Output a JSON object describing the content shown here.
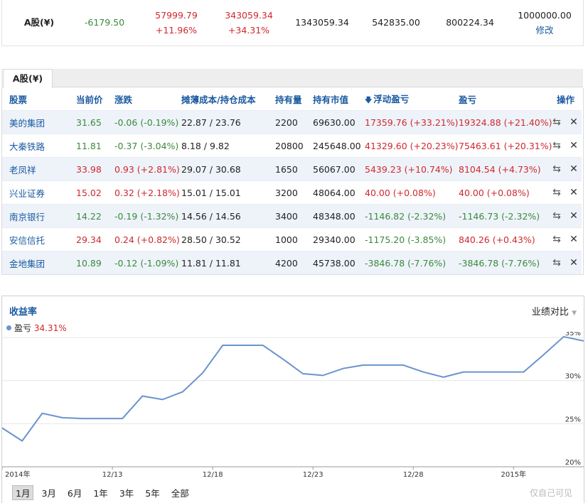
{
  "summary": {
    "market_label": "A股(¥)",
    "today_pnl": "-6179.50",
    "holding_pnl": "57999.79",
    "holding_pnl_pct": "+11.96%",
    "total_pnl": "343059.34",
    "total_pnl_pct": "+34.31%",
    "total_assets": "1343059.34",
    "market_value": "542835.00",
    "cash": "800224.34",
    "principal": "1000000.00",
    "edit_label": "修改"
  },
  "tab": {
    "label": "A股(¥)"
  },
  "table": {
    "headers": [
      "股票",
      "当前价",
      "涨跌",
      "摊薄成本/持仓成本",
      "持有量",
      "持有市值",
      "浮动盈亏",
      "盈亏",
      "操作"
    ],
    "sort_icon": "sort-down-icon",
    "rows": [
      {
        "name": "美的集团",
        "price": "31.65",
        "change": "-0.06 (-0.19%)",
        "cost": "22.87 / 23.76",
        "qty": "2200",
        "value": "69630.00",
        "float_pnl": "17359.76 (+33.21%)",
        "pnl": "19324.88 (+21.40%)",
        "dir": "down",
        "fdir": "up",
        "pdir": "up"
      },
      {
        "name": "大秦铁路",
        "price": "11.81",
        "change": "-0.37 (-3.04%)",
        "cost": "8.18 / 9.82",
        "qty": "20800",
        "value": "245648.00",
        "float_pnl": "41329.60 (+20.23%)",
        "pnl": "75463.61 (+20.31%)",
        "dir": "down",
        "fdir": "up",
        "pdir": "up"
      },
      {
        "name": "老凤祥",
        "price": "33.98",
        "change": "0.93 (+2.81%)",
        "cost": "29.07 / 30.68",
        "qty": "1650",
        "value": "56067.00",
        "float_pnl": "5439.23 (+10.74%)",
        "pnl": "8104.54 (+4.73%)",
        "dir": "up",
        "fdir": "up",
        "pdir": "up"
      },
      {
        "name": "兴业证券",
        "price": "15.02",
        "change": "0.32 (+2.18%)",
        "cost": "15.01 / 15.01",
        "qty": "3200",
        "value": "48064.00",
        "float_pnl": "40.00 (+0.08%)",
        "pnl": "40.00 (+0.08%)",
        "dir": "up",
        "fdir": "up",
        "pdir": "up"
      },
      {
        "name": "南京银行",
        "price": "14.22",
        "change": "-0.19 (-1.32%)",
        "cost": "14.56 / 14.56",
        "qty": "3400",
        "value": "48348.00",
        "float_pnl": "-1146.82 (-2.32%)",
        "pnl": "-1146.73 (-2.32%)",
        "dir": "down",
        "fdir": "down",
        "pdir": "down"
      },
      {
        "name": "安信信托",
        "price": "29.34",
        "change": "0.24 (+0.82%)",
        "cost": "28.50 / 30.52",
        "qty": "1000",
        "value": "29340.00",
        "float_pnl": "-1175.20 (-3.85%)",
        "pnl": "840.26 (+0.43%)",
        "dir": "up",
        "fdir": "down",
        "pdir": "up"
      },
      {
        "name": "金地集团",
        "price": "10.89",
        "change": "-0.12 (-1.09%)",
        "cost": "11.81 / 11.81",
        "qty": "4200",
        "value": "45738.00",
        "float_pnl": "-3846.78 (-7.76%)",
        "pnl": "-3846.78 (-7.76%)",
        "dir": "down",
        "fdir": "down",
        "pdir": "down"
      }
    ],
    "trade_icon": "swap-icon",
    "delete_icon": "close-icon"
  },
  "colors": {
    "up": "#d0282c",
    "down": "#3a8a3a",
    "accent": "#1a5aa0",
    "line": "#6b93cf"
  },
  "chart": {
    "title": "收益率",
    "compare_label": "业绩对比",
    "legend_label": "盈亏",
    "legend_value": "34.31%",
    "range_buttons": [
      "1月",
      "3月",
      "6月",
      "1年",
      "3年",
      "5年",
      "全部"
    ],
    "active_range": "1月",
    "watermark": "仅自己可见"
  },
  "chart_data": {
    "type": "line",
    "title": "收益率",
    "x_tick_labels": [
      "2014年",
      "12/13",
      "12/18",
      "12/23",
      "12/28",
      "2015年"
    ],
    "x_tick_index": [
      0,
      5.5,
      10.5,
      15.5,
      20.5,
      25.5
    ],
    "y_ticks": [
      20,
      25,
      30,
      35
    ],
    "y_tick_labels": [
      "20%",
      "25%",
      "30%",
      "35%"
    ],
    "ylim": [
      20,
      35.5
    ],
    "series": [
      {
        "name": "盈亏",
        "values": [
          24.5,
          23.0,
          26.2,
          25.7,
          25.6,
          25.6,
          25.6,
          28.2,
          27.8,
          28.7,
          30.9,
          34.1,
          34.1,
          34.1,
          32.5,
          30.8,
          30.6,
          31.4,
          31.8,
          31.8,
          31.8,
          31.0,
          30.4,
          31.0,
          31.0,
          31.0,
          31.0,
          33.0,
          35.1,
          34.6
        ]
      }
    ]
  }
}
